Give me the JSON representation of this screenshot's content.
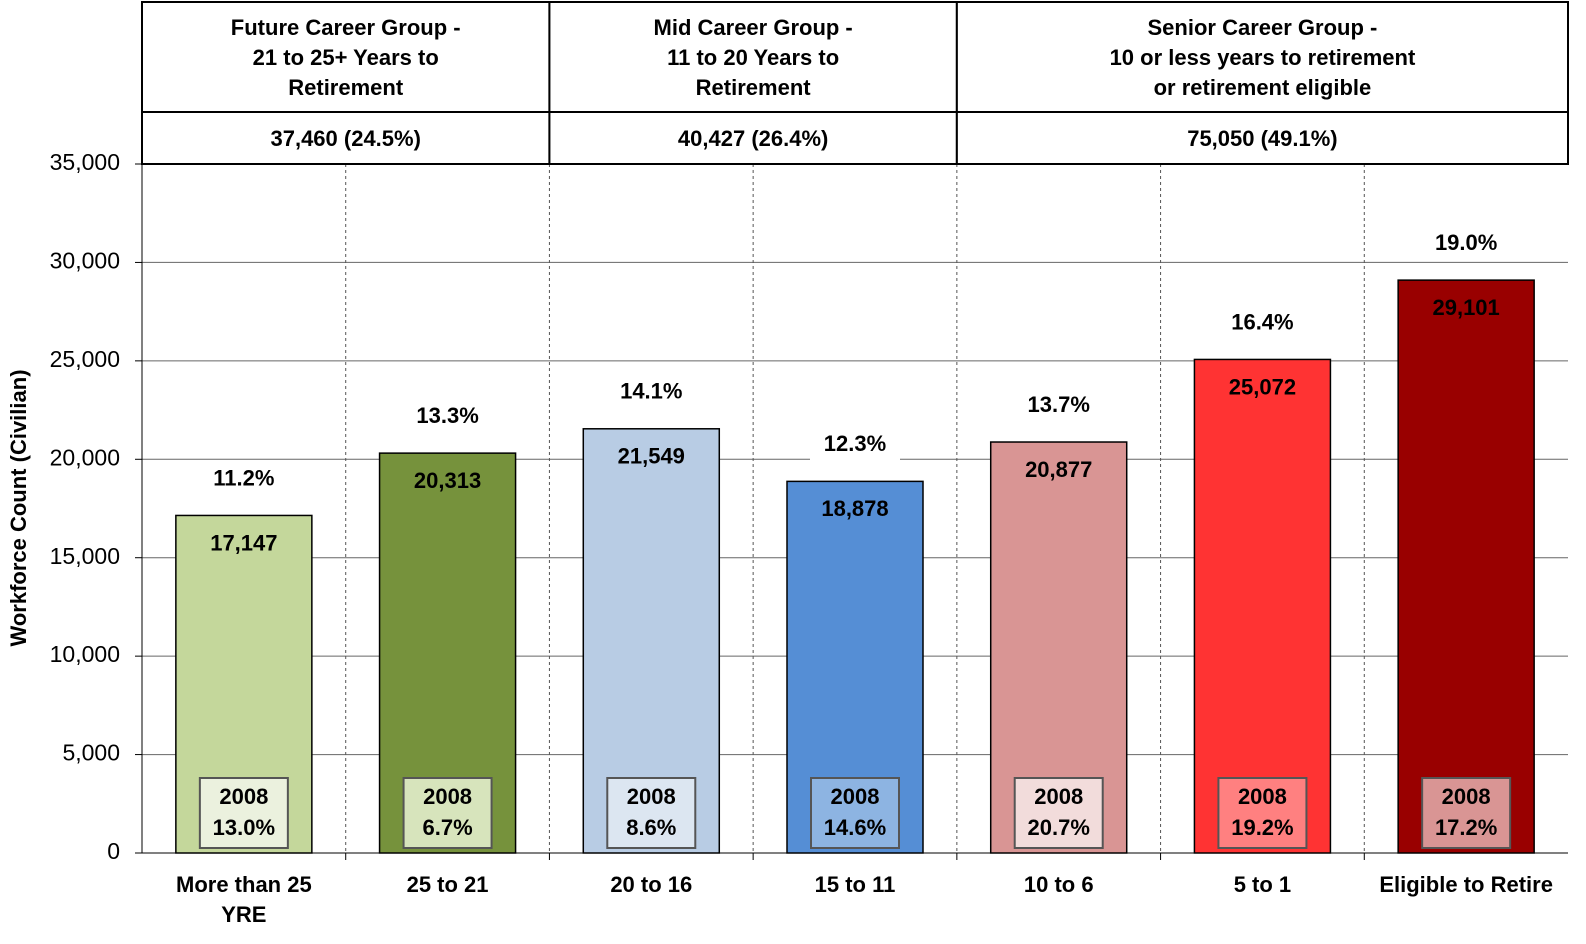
{
  "chart_data": {
    "type": "bar",
    "y_label": "Workforce Count (Civilian)",
    "categories": [
      "More than 25 YRE",
      "25 to 21",
      "20 to 16",
      "15 to 11",
      "10 to 6",
      "5 to 1",
      "Eligible to Retire"
    ],
    "values": [
      17147,
      20313,
      21549,
      18878,
      20877,
      25072,
      29101
    ],
    "value_labels": [
      "17,147",
      "20,313",
      "21,549",
      "18,878",
      "20,877",
      "25,072",
      "29,101"
    ],
    "share_labels": [
      "11.2%",
      "13.3%",
      "14.1%",
      "12.3%",
      "13.7%",
      "16.4%",
      "19.0%"
    ],
    "box_labels": [
      [
        "2008",
        "13.0%"
      ],
      [
        "2008",
        "6.7%"
      ],
      [
        "2008",
        "8.6%"
      ],
      [
        "2008",
        "14.6%"
      ],
      [
        "2008",
        "20.7%"
      ],
      [
        "2008",
        "19.2%"
      ],
      [
        "2008",
        "17.2%"
      ]
    ],
    "colors": [
      "#c4d79b",
      "#76923c",
      "#b8cce4",
      "#558ed5",
      "#d99594",
      "#ff3333",
      "#990000"
    ],
    "box_colors": [
      "#ebf1de",
      "#d7e4bc",
      "#dce6f1",
      "#8db4e2",
      "#f2dcdb",
      "#ff8080",
      "#d99594"
    ],
    "label_colors": [
      "#000000",
      "#000000",
      "#000000",
      "#000000",
      "#000000",
      "#000000",
      "#ffffff"
    ],
    "ylim": [
      0,
      35000
    ],
    "yticks": [
      0,
      {
        "value": 5000,
        "label": "5,000"
      },
      {
        "value": 10000,
        "label": "10,000"
      },
      {
        "value": 15000,
        "label": "15,000"
      },
      {
        "value": 20000,
        "label": "20,000"
      },
      {
        "value": 25000,
        "label": "25,000"
      },
      {
        "value": 30000,
        "label": "30,000"
      },
      {
        "value": 35000,
        "label": "35,000"
      }
    ],
    "grid": true,
    "groups": [
      {
        "title": [
          "Future Career Group -",
          "21 to 25+ Years to",
          "Retirement"
        ],
        "total": "37,460 (24.5%)"
      },
      {
        "title": [
          "Mid Career Group -",
          "11 to 20 Years to",
          "Retirement"
        ],
        "total": "40,427 (26.4%)"
      },
      {
        "title": [
          "Senior Career Group -",
          "10 or less years to retirement",
          "or retirement eligible"
        ],
        "total": "75,050 (49.1%)"
      }
    ]
  }
}
